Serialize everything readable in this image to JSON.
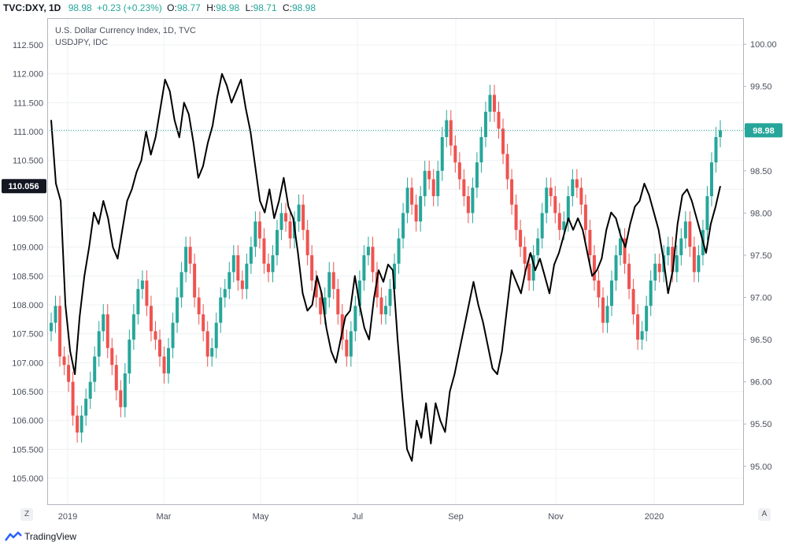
{
  "header": {
    "symbol": "TVC:DXY, 1D",
    "last": "98.98",
    "change": "+0.23 (+0.23%)",
    "o_label": "O:",
    "o_value": "98.77",
    "h_label": "H:",
    "h_value": "98.98",
    "l_label": "L:",
    "l_value": "98.71",
    "c_label": "C:",
    "c_value": "98.98"
  },
  "legend": {
    "line1": "U.S. Dollar Currency Index, 1D, TVC",
    "line2": "USDJPY, IDC"
  },
  "footer": {
    "brand": "TradingView",
    "left_btn": "Z",
    "right_btn": "A"
  },
  "colors": {
    "up": "#26a69a",
    "down": "#ef5350",
    "line": "#000000",
    "badge": "#26a69a",
    "badge_dark": "#131722"
  },
  "chart_data": {
    "type": "line",
    "x_labels": [
      "2019",
      "Mar",
      "May",
      "Jul",
      "Sep",
      "Nov",
      "2020"
    ],
    "left_axis": {
      "ticks": [
        "112.500",
        "112.000",
        "111.500",
        "111.000",
        "110.500",
        "110.000",
        "109.500",
        "109.000",
        "108.500",
        "108.000",
        "107.500",
        "107.000",
        "106.500",
        "106.000",
        "105.500",
        "105.000"
      ],
      "range": [
        104.55,
        112.95
      ],
      "badge": "110.056"
    },
    "right_axis": {
      "ticks": [
        "100.00",
        "99.50",
        "99.00",
        "98.50",
        "98.00",
        "97.50",
        "97.00",
        "96.50",
        "96.00",
        "95.50",
        "95.00"
      ],
      "range": [
        94.55,
        100.3
      ],
      "badge": "98.98"
    },
    "series": [
      {
        "name": "U.S. Dollar Currency Index, 1D, TVC",
        "style": "candles",
        "axis": "right",
        "values": [
          96.7,
          96.9,
          96.3,
          96.2,
          96.0,
          95.6,
          95.4,
          95.6,
          95.8,
          96.0,
          96.3,
          96.6,
          96.8,
          96.4,
          96.2,
          95.9,
          95.7,
          96.1,
          96.5,
          96.8,
          97.1,
          97.2,
          96.9,
          96.6,
          96.5,
          96.3,
          96.1,
          96.4,
          96.7,
          97.0,
          97.3,
          97.6,
          97.4,
          97.0,
          96.8,
          96.6,
          96.3,
          96.4,
          96.7,
          97.0,
          97.1,
          97.3,
          97.5,
          97.2,
          97.1,
          97.4,
          97.6,
          97.9,
          97.7,
          97.4,
          97.3,
          97.5,
          97.8,
          98.0,
          97.9,
          97.7,
          97.9,
          98.1,
          97.8,
          97.5,
          97.2,
          97.0,
          96.8,
          97.0,
          97.3,
          97.1,
          96.8,
          96.5,
          96.3,
          96.6,
          96.9,
          97.2,
          97.5,
          97.6,
          97.3,
          97.0,
          96.8,
          96.9,
          97.1,
          97.4,
          97.7,
          98.0,
          98.3,
          98.1,
          97.9,
          98.2,
          98.5,
          98.4,
          98.2,
          98.5,
          98.9,
          99.1,
          98.8,
          98.6,
          98.4,
          98.2,
          98.0,
          98.3,
          98.6,
          98.9,
          99.2,
          99.4,
          99.2,
          99.0,
          98.7,
          98.4,
          98.1,
          97.8,
          97.6,
          97.4,
          97.2,
          97.5,
          97.7,
          98.0,
          98.3,
          98.2,
          98.0,
          97.8,
          97.9,
          98.2,
          98.4,
          98.3,
          98.1,
          97.8,
          97.5,
          97.2,
          97.0,
          96.7,
          96.9,
          97.2,
          97.5,
          97.7,
          97.4,
          97.1,
          96.8,
          96.5,
          96.6,
          96.9,
          97.2,
          97.4,
          97.3,
          97.5,
          97.6,
          97.3,
          97.5,
          97.7,
          97.9,
          97.6,
          97.3,
          97.5,
          97.8,
          98.2,
          98.6,
          98.9,
          98.98
        ]
      },
      {
        "name": "USDJPY, IDC",
        "style": "line",
        "axis": "left",
        "values": [
          111.2,
          110.1,
          109.8,
          108.0,
          107.2,
          106.8,
          107.8,
          108.5,
          109.0,
          109.6,
          109.4,
          109.8,
          109.5,
          109.0,
          108.8,
          109.3,
          109.8,
          110.0,
          110.3,
          110.5,
          111.0,
          110.6,
          110.9,
          111.4,
          111.9,
          111.7,
          111.2,
          110.9,
          111.5,
          111.3,
          110.8,
          110.2,
          110.4,
          110.8,
          111.1,
          111.6,
          112.0,
          111.8,
          111.5,
          111.7,
          111.9,
          111.4,
          111.0,
          110.4,
          109.8,
          109.6,
          110.0,
          109.5,
          109.8,
          110.2,
          109.7,
          109.5,
          108.9,
          108.2,
          107.9,
          108.0,
          108.5,
          108.2,
          107.6,
          107.2,
          107.0,
          107.4,
          107.8,
          107.9,
          108.5,
          108.0,
          107.6,
          107.4,
          108.1,
          108.6,
          108.4,
          108.7,
          108.6,
          107.4,
          106.4,
          105.5,
          105.3,
          106.0,
          105.7,
          106.3,
          105.6,
          106.3,
          106.0,
          105.8,
          106.5,
          106.8,
          107.2,
          107.6,
          108.0,
          108.4,
          108.0,
          107.7,
          107.3,
          106.9,
          106.8,
          107.2,
          107.9,
          108.6,
          108.4,
          108.2,
          108.6,
          108.9,
          108.6,
          108.8,
          108.5,
          108.2,
          108.7,
          108.9,
          109.2,
          109.5,
          109.3,
          109.5,
          109.3,
          108.9,
          108.5,
          108.6,
          108.8,
          109.3,
          109.6,
          109.5,
          109.2,
          109.0,
          109.4,
          109.7,
          109.8,
          110.1,
          109.9,
          109.6,
          109.3,
          108.8,
          108.2,
          108.6,
          109.4,
          109.9,
          110.0,
          109.8,
          109.5,
          109.2,
          108.9,
          109.4,
          109.7,
          110.056
        ]
      }
    ]
  }
}
